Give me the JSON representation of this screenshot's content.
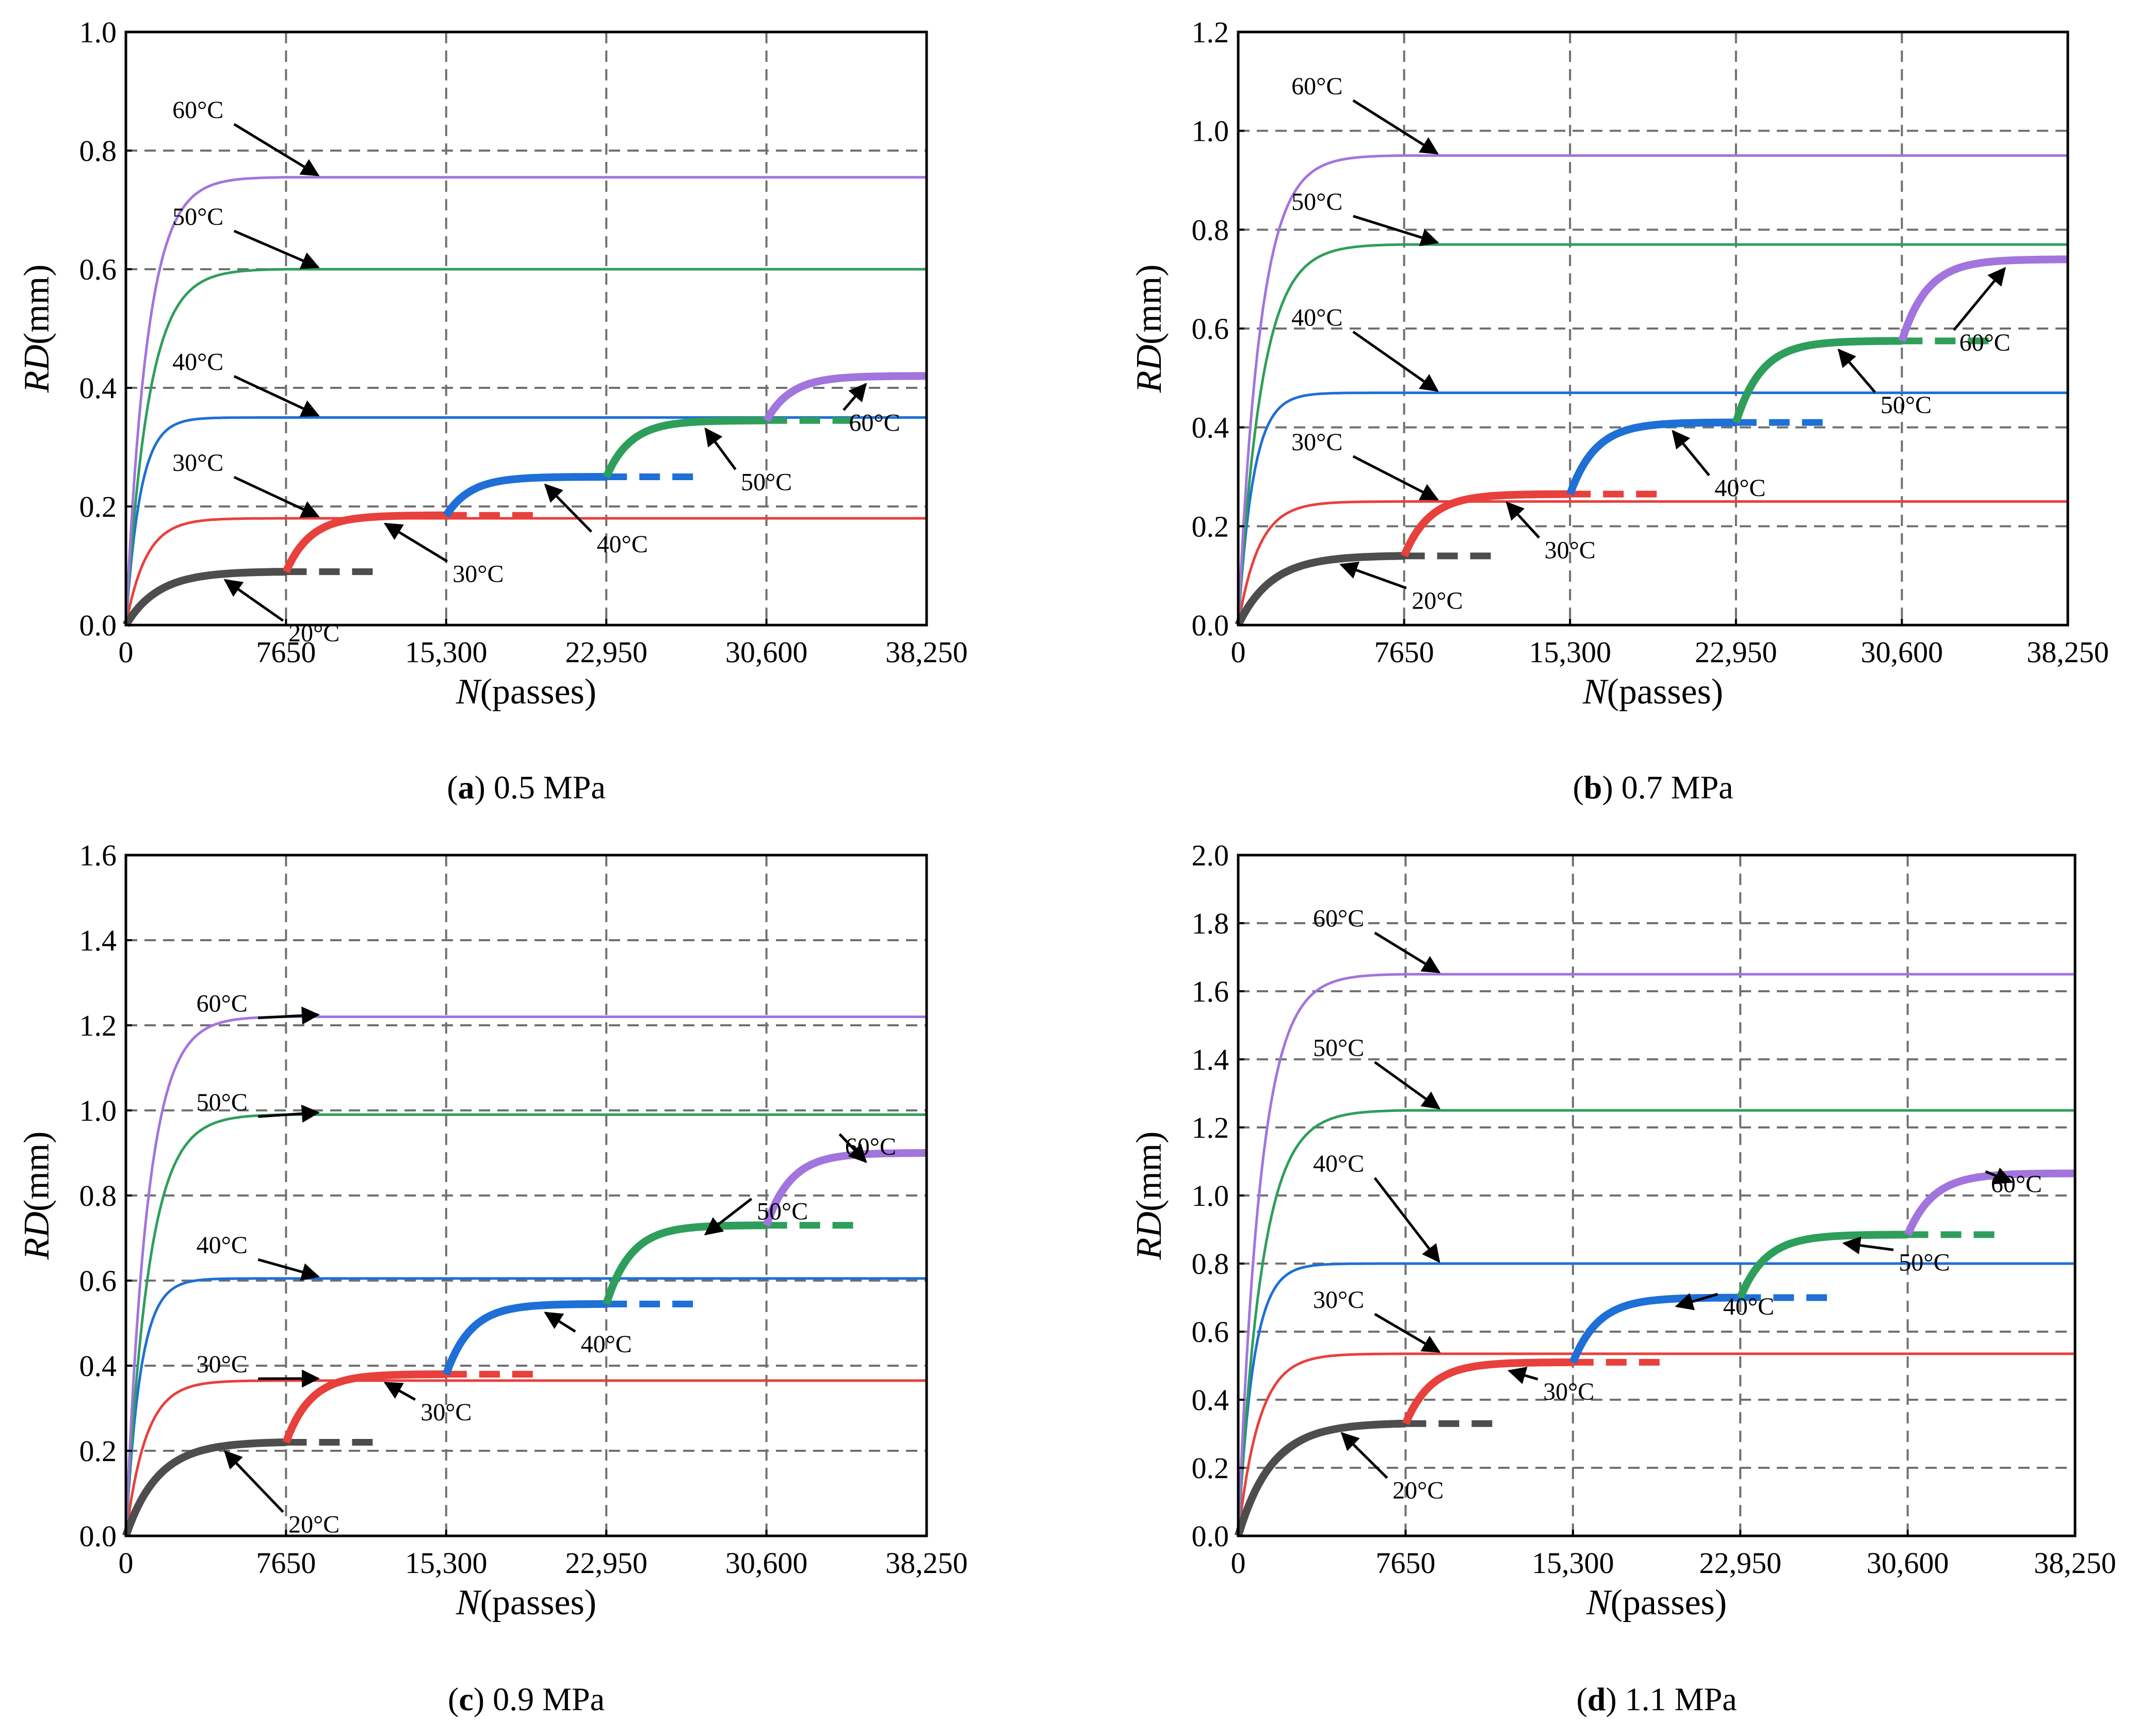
{
  "colors": {
    "20": "#4d4d4d",
    "30": "#e8403c",
    "40": "#1e6fd6",
    "50": "#2e9e5b",
    "60": "#a274dd",
    "grid": "#707070"
  },
  "chart_data": [
    {
      "id": "a",
      "type": "line",
      "caption_letter": "a",
      "caption_text": "0.5 MPa",
      "xlabel_italic": "N",
      "xlabel_rest": "(passes)",
      "ylabel_italic": "RD",
      "ylabel_rest": "(mm)",
      "xlim": [
        0,
        38250
      ],
      "ylim": [
        0,
        1.0
      ],
      "xticks": [
        0,
        7650,
        15300,
        22950,
        30600,
        38250
      ],
      "xtick_labels": [
        "0",
        "7650",
        "15,300",
        "22,950",
        "30,600",
        "38,250"
      ],
      "yticks": [
        0,
        0.2,
        0.4,
        0.6,
        0.8,
        1.0
      ],
      "ytick_labels": [
        "0.0",
        "0.2",
        "0.4",
        "0.6",
        "0.8",
        "1.0"
      ],
      "constant_temperature_series": [
        {
          "temp": "20",
          "label": "20°C",
          "final": 0.09
        },
        {
          "temp": "30",
          "label": "30°C",
          "final": 0.18
        },
        {
          "temp": "40",
          "label": "40°C",
          "final": 0.35
        },
        {
          "temp": "50",
          "label": "50°C",
          "final": 0.6
        },
        {
          "temp": "60",
          "label": "60°C",
          "final": 0.755
        }
      ],
      "variable_temperature_series": [
        {
          "temp": "20",
          "label": "20°C",
          "start": 0.0,
          "end": 0.09
        },
        {
          "temp": "30",
          "label": "30°C",
          "start": 0.09,
          "end": 0.185
        },
        {
          "temp": "40",
          "label": "40°C",
          "start": 0.185,
          "end": 0.25
        },
        {
          "temp": "50",
          "label": "50°C",
          "start": 0.25,
          "end": 0.345
        },
        {
          "temp": "60",
          "label": "60°C",
          "start": 0.345,
          "end": 0.42
        }
      ]
    },
    {
      "id": "b",
      "type": "line",
      "caption_letter": "b",
      "caption_text": "0.7 MPa",
      "xlabel_italic": "N",
      "xlabel_rest": "(passes)",
      "ylabel_italic": "RD",
      "ylabel_rest": "(mm)",
      "xlim": [
        0,
        38250
      ],
      "ylim": [
        0,
        1.2
      ],
      "xticks": [
        0,
        7650,
        15300,
        22950,
        30600,
        38250
      ],
      "xtick_labels": [
        "0",
        "7650",
        "15,300",
        "22,950",
        "30,600",
        "38,250"
      ],
      "yticks": [
        0,
        0.2,
        0.4,
        0.6,
        0.8,
        1.0,
        1.2
      ],
      "ytick_labels": [
        "0.0",
        "0.2",
        "0.4",
        "0.6",
        "0.8",
        "1.0",
        "1.2"
      ],
      "constant_temperature_series": [
        {
          "temp": "20",
          "label": "20°C",
          "final": 0.14
        },
        {
          "temp": "30",
          "label": "30°C",
          "final": 0.25
        },
        {
          "temp": "40",
          "label": "40°C",
          "final": 0.47
        },
        {
          "temp": "50",
          "label": "50°C",
          "final": 0.77
        },
        {
          "temp": "60",
          "label": "60°C",
          "final": 0.95
        }
      ],
      "variable_temperature_series": [
        {
          "temp": "20",
          "label": "20°C",
          "start": 0.0,
          "end": 0.14
        },
        {
          "temp": "30",
          "label": "30°C",
          "start": 0.14,
          "end": 0.265
        },
        {
          "temp": "40",
          "label": "40°C",
          "start": 0.265,
          "end": 0.41
        },
        {
          "temp": "50",
          "label": "50°C",
          "start": 0.41,
          "end": 0.575
        },
        {
          "temp": "60",
          "label": "60°C",
          "start": 0.575,
          "end": 0.74
        }
      ]
    },
    {
      "id": "c",
      "type": "line",
      "caption_letter": "c",
      "caption_text": "0.9 MPa",
      "xlabel_italic": "N",
      "xlabel_rest": "(passes)",
      "ylabel_italic": "RD",
      "ylabel_rest": "(mm)",
      "xlim": [
        0,
        38250
      ],
      "ylim": [
        0,
        1.6
      ],
      "xticks": [
        0,
        7650,
        15300,
        22950,
        30600,
        38250
      ],
      "xtick_labels": [
        "0",
        "7650",
        "15,300",
        "22,950",
        "30,600",
        "38,250"
      ],
      "yticks": [
        0,
        0.2,
        0.4,
        0.6,
        0.8,
        1.0,
        1.2,
        1.4,
        1.6
      ],
      "ytick_labels": [
        "0.0",
        "0.2",
        "0.4",
        "0.6",
        "0.8",
        "1.0",
        "1.2",
        "1.4",
        "1.6"
      ],
      "constant_temperature_series": [
        {
          "temp": "20",
          "label": "20°C",
          "final": 0.22
        },
        {
          "temp": "30",
          "label": "30°C",
          "final": 0.365
        },
        {
          "temp": "40",
          "label": "40°C",
          "final": 0.605
        },
        {
          "temp": "50",
          "label": "50°C",
          "final": 0.99
        },
        {
          "temp": "60",
          "label": "60°C",
          "final": 1.22
        }
      ],
      "variable_temperature_series": [
        {
          "temp": "20",
          "label": "20°C",
          "start": 0.0,
          "end": 0.22
        },
        {
          "temp": "30",
          "label": "30°C",
          "start": 0.22,
          "end": 0.38
        },
        {
          "temp": "40",
          "label": "40°C",
          "start": 0.38,
          "end": 0.545
        },
        {
          "temp": "50",
          "label": "50°C",
          "start": 0.545,
          "end": 0.73
        },
        {
          "temp": "60",
          "label": "60°C",
          "start": 0.73,
          "end": 0.9
        }
      ]
    },
    {
      "id": "d",
      "type": "line",
      "caption_letter": "d",
      "caption_text": "1.1 MPa",
      "xlabel_italic": "N",
      "xlabel_rest": "(passes)",
      "ylabel_italic": "RD",
      "ylabel_rest": "(mm)",
      "xlim": [
        0,
        38250
      ],
      "ylim": [
        0,
        2.0
      ],
      "xticks": [
        0,
        7650,
        15300,
        22950,
        30600,
        38250
      ],
      "xtick_labels": [
        "0",
        "7650",
        "15,300",
        "22,950",
        "30,600",
        "38,250"
      ],
      "yticks": [
        0,
        0.2,
        0.4,
        0.6,
        0.8,
        1.0,
        1.2,
        1.4,
        1.6,
        1.8,
        2.0
      ],
      "ytick_labels": [
        "0.0",
        "0.2",
        "0.4",
        "0.6",
        "0.8",
        "1.0",
        "1.2",
        "1.4",
        "1.6",
        "1.8",
        "2.0"
      ],
      "constant_temperature_series": [
        {
          "temp": "20",
          "label": "20°C",
          "final": 0.33
        },
        {
          "temp": "30",
          "label": "30°C",
          "final": 0.535
        },
        {
          "temp": "40",
          "label": "40°C",
          "final": 0.8
        },
        {
          "temp": "50",
          "label": "50°C",
          "final": 1.25
        },
        {
          "temp": "60",
          "label": "60°C",
          "final": 1.65
        }
      ],
      "variable_temperature_series": [
        {
          "temp": "20",
          "label": "20°C",
          "start": 0.0,
          "end": 0.33
        },
        {
          "temp": "30",
          "label": "30°C",
          "start": 0.33,
          "end": 0.51
        },
        {
          "temp": "40",
          "label": "40°C",
          "start": 0.51,
          "end": 0.7
        },
        {
          "temp": "50",
          "label": "50°C",
          "start": 0.7,
          "end": 0.885
        },
        {
          "temp": "60",
          "label": "60°C",
          "start": 0.885,
          "end": 1.065
        }
      ]
    }
  ]
}
